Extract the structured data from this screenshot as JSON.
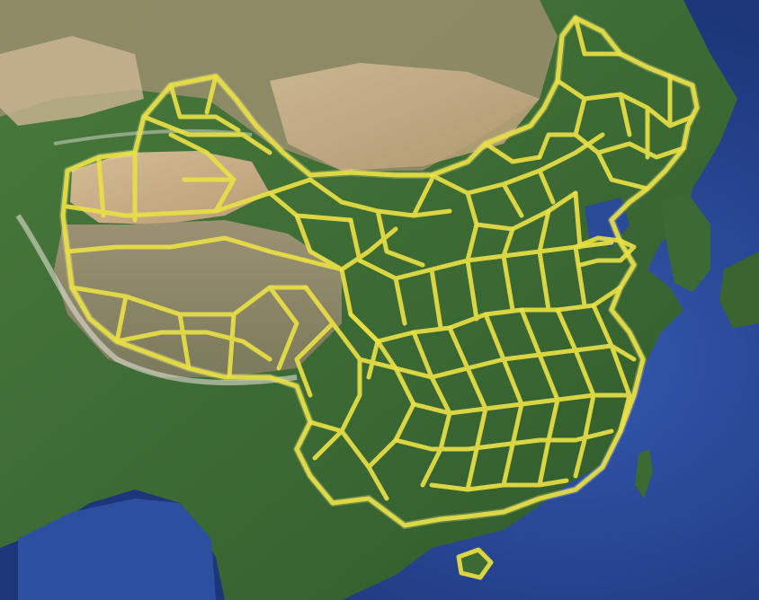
{
  "map": {
    "style": "satellite",
    "overlay": "highway-network",
    "colors": {
      "ocean": "#2a4fa0",
      "deep_ocean": "#1c3a86",
      "land_green": "#3f6b35",
      "land_dark_green": "#2d5228",
      "desert": "#c9ad86",
      "plateau": "#8f8a6e",
      "mountain_snow": "#e6e4de",
      "route_overlay": "#e8de45"
    }
  }
}
